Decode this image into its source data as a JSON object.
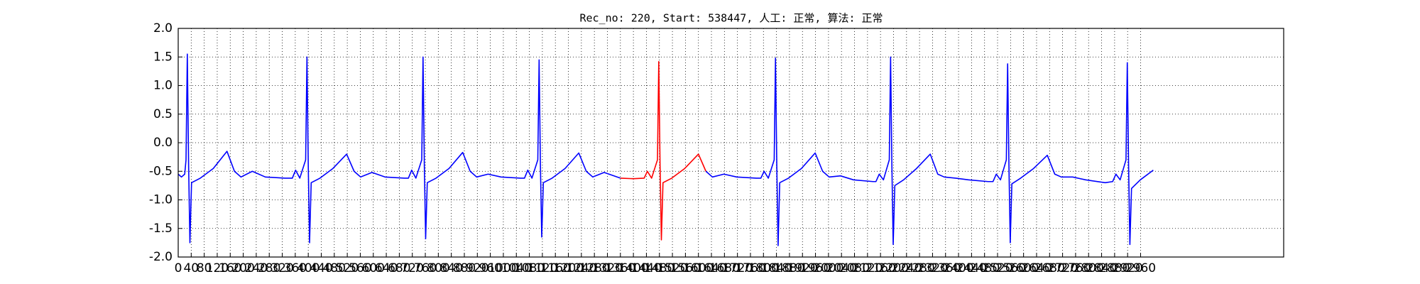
{
  "chart_data": {
    "type": "line",
    "title": "Rec_no: 220, Start: 538447, 人工: 正常, 算法: 正常",
    "xlim": [
      0,
      3400
    ],
    "xticks": [
      0,
      40,
      80,
      120,
      160,
      200,
      240,
      280,
      320,
      360,
      400,
      440,
      480,
      520,
      560,
      600,
      640,
      680,
      720,
      760,
      800,
      840,
      880,
      920,
      960,
      1000,
      1040,
      1080,
      1120,
      1160,
      1200,
      1240,
      1280,
      1320,
      1360,
      1400,
      1440,
      1480,
      1520,
      1560,
      1600,
      1640,
      1680,
      1720,
      1760,
      1800,
      1840,
      1880,
      1920,
      1960,
      2000,
      2040,
      2080,
      2120,
      2160,
      2200,
      2240,
      2280,
      2320,
      2360,
      2400,
      2440,
      2480,
      2520,
      2560,
      2600,
      2640,
      2680,
      2720,
      2760,
      2800,
      2840,
      2880,
      2920,
      2960
    ],
    "ylim": [
      -2,
      2
    ],
    "yticks": [
      {
        "value": -2,
        "label": "-2.0"
      },
      -1.5,
      {
        "value": -1,
        "label": "-1.0"
      },
      -0.5,
      {
        "value": 0,
        "label": "0.0"
      },
      0.5,
      {
        "value": 1,
        "label": "1.0"
      },
      1.5,
      {
        "value": 2,
        "label": "2.0"
      }
    ],
    "grid": true,
    "series": [
      {
        "color": "#0000ff",
        "x": [
          0,
          10,
          20,
          24,
          28,
          32,
          36,
          41,
          68,
          108,
          150,
          173,
          193,
          228,
          268,
          328,
          351,
          361,
          374,
          392,
          396,
          400,
          404,
          409,
          436,
          476,
          518,
          541,
          561,
          596,
          636,
          696,
          708,
          718,
          731,
          749,
          753,
          757,
          761,
          766,
          793,
          833,
          875,
          898,
          918,
          953,
          993,
          1053,
          1065,
          1075,
          1088,
          1106,
          1110,
          1114,
          1118,
          1123,
          1150,
          1190,
          1232,
          1255,
          1275,
          1310,
          1360
        ],
        "values": [
          -0.55,
          -0.6,
          -0.55,
          -0.3,
          1.55,
          -0.4,
          -1.75,
          -0.7,
          -0.62,
          -0.45,
          -0.15,
          -0.5,
          -0.6,
          -0.5,
          -0.6,
          -0.62,
          -0.62,
          -0.48,
          -0.62,
          -0.3,
          1.5,
          -0.4,
          -1.75,
          -0.7,
          -0.62,
          -0.45,
          -0.2,
          -0.5,
          -0.6,
          -0.52,
          -0.6,
          -0.62,
          -0.62,
          -0.48,
          -0.62,
          -0.3,
          1.5,
          -0.4,
          -1.68,
          -0.7,
          -0.62,
          -0.45,
          -0.17,
          -0.5,
          -0.6,
          -0.55,
          -0.6,
          -0.62,
          -0.62,
          -0.48,
          -0.62,
          -0.3,
          1.45,
          -0.4,
          -1.65,
          -0.7,
          -0.62,
          -0.45,
          -0.18,
          -0.5,
          -0.6,
          -0.52,
          -0.62
        ]
      },
      {
        "color": "#ff0000",
        "x": [
          1360,
          1400,
          1433,
          1443,
          1456,
          1474,
          1478,
          1482,
          1486,
          1491,
          1518,
          1558,
          1600,
          1623
        ],
        "values": [
          -0.62,
          -0.63,
          -0.62,
          -0.5,
          -0.62,
          -0.3,
          1.42,
          -0.4,
          -1.7,
          -0.7,
          -0.62,
          -0.45,
          -0.2,
          -0.5
        ]
      },
      {
        "color": "#0000ff",
        "x": [
          1623,
          1643,
          1678,
          1718,
          1778,
          1792,
          1802,
          1815,
          1833,
          1837,
          1841,
          1845,
          1850,
          1877,
          1917,
          1959,
          1982,
          2002,
          2037,
          2077,
          2137,
          2146,
          2156,
          2169,
          2187,
          2191,
          2195,
          2199,
          2204,
          2231,
          2271,
          2313,
          2336,
          2356,
          2391,
          2431,
          2491,
          2506,
          2516,
          2529,
          2547,
          2551,
          2555,
          2559,
          2564,
          2591,
          2631,
          2673,
          2696,
          2716,
          2751,
          2791,
          2851,
          2874,
          2884,
          2897,
          2915,
          2919,
          2923,
          2927,
          2932,
          2959,
          2999
        ],
        "values": [
          -0.5,
          -0.6,
          -0.55,
          -0.6,
          -0.62,
          -0.62,
          -0.5,
          -0.62,
          -0.3,
          1.48,
          -0.4,
          -1.8,
          -0.7,
          -0.62,
          -0.45,
          -0.18,
          -0.5,
          -0.6,
          -0.58,
          -0.65,
          -0.68,
          -0.68,
          -0.55,
          -0.65,
          -0.3,
          1.5,
          -0.4,
          -1.78,
          -0.75,
          -0.65,
          -0.45,
          -0.2,
          -0.55,
          -0.6,
          -0.62,
          -0.65,
          -0.68,
          -0.68,
          -0.55,
          -0.65,
          -0.3,
          1.38,
          -0.4,
          -1.75,
          -0.72,
          -0.62,
          -0.45,
          -0.22,
          -0.55,
          -0.6,
          -0.6,
          -0.65,
          -0.7,
          -0.68,
          -0.55,
          -0.65,
          -0.3,
          1.4,
          -0.4,
          -1.78,
          -0.8,
          -0.65,
          -0.48
        ]
      }
    ]
  }
}
